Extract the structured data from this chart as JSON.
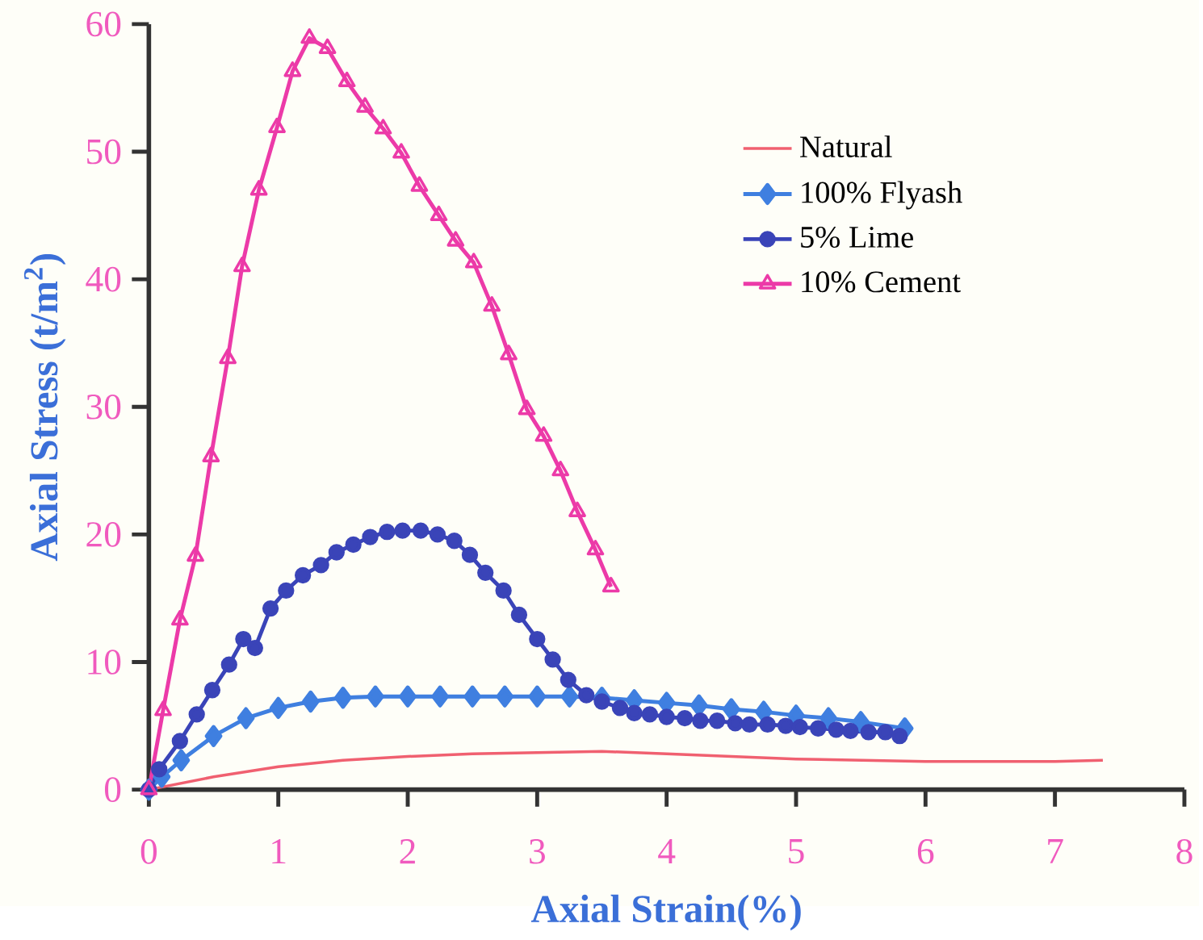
{
  "chart_data": {
    "type": "line",
    "xlabel": "Axial Strain(%)",
    "ylabel": "Axial Stress (t/m$^{2}$)",
    "xlim": [
      0,
      8
    ],
    "ylim": [
      0,
      60
    ],
    "xticks": [
      0,
      1,
      2,
      3,
      4,
      5,
      6,
      7,
      8
    ],
    "yticks": [
      0,
      10,
      20,
      30,
      40,
      50,
      60
    ],
    "grid": false,
    "legend": "top right",
    "series": [
      {
        "name": "Natural",
        "color": "#f06070",
        "marker": "none",
        "x": [
          0,
          0.5,
          1,
          1.5,
          2,
          2.5,
          3,
          3.5,
          4,
          4.5,
          5,
          5.5,
          6,
          6.5,
          7,
          7.37
        ],
        "values": [
          0,
          1.0,
          1.8,
          2.3,
          2.6,
          2.8,
          2.9,
          3.0,
          2.8,
          2.6,
          2.4,
          2.3,
          2.2,
          2.2,
          2.2,
          2.3
        ]
      },
      {
        "name": "100% Flyash",
        "color": "#3f7fe0",
        "marker": "diamond",
        "x": [
          0,
          0.1,
          0.25,
          0.5,
          0.75,
          1,
          1.25,
          1.5,
          1.75,
          2,
          2.25,
          2.5,
          2.75,
          3,
          3.25,
          3.5,
          3.75,
          4,
          4.25,
          4.5,
          4.75,
          5,
          5.25,
          5.5,
          5.84
        ],
        "values": [
          0,
          1.0,
          2.3,
          4.2,
          5.6,
          6.4,
          6.9,
          7.2,
          7.3,
          7.3,
          7.3,
          7.3,
          7.3,
          7.3,
          7.3,
          7.2,
          7.0,
          6.8,
          6.6,
          6.3,
          6.1,
          5.8,
          5.6,
          5.3,
          4.8
        ]
      },
      {
        "name": "5% Lime",
        "color": "#3a44b8",
        "marker": "circle",
        "x": [
          0,
          0.08,
          0.24,
          0.37,
          0.49,
          0.62,
          0.73,
          0.82,
          0.94,
          1.06,
          1.19,
          1.33,
          1.45,
          1.58,
          1.71,
          1.84,
          1.96,
          2.1,
          2.23,
          2.36,
          2.48,
          2.6,
          2.74,
          2.86,
          3.0,
          3.12,
          3.24,
          3.38,
          3.5,
          3.64,
          3.75,
          3.87,
          4.0,
          4.14,
          4.26,
          4.39,
          4.53,
          4.64,
          4.78,
          4.92,
          5.03,
          5.17,
          5.31,
          5.42,
          5.56,
          5.69,
          5.8
        ],
        "values": [
          0,
          1.6,
          3.8,
          5.9,
          7.8,
          9.8,
          11.8,
          11.1,
          14.2,
          15.6,
          16.8,
          17.6,
          18.6,
          19.2,
          19.8,
          20.2,
          20.3,
          20.3,
          20.0,
          19.5,
          18.4,
          17.0,
          15.6,
          13.7,
          11.8,
          10.2,
          8.6,
          7.4,
          6.9,
          6.4,
          6.0,
          5.9,
          5.7,
          5.6,
          5.4,
          5.4,
          5.2,
          5.1,
          5.1,
          5.0,
          4.9,
          4.8,
          4.7,
          4.6,
          4.5,
          4.5,
          4.2
        ]
      },
      {
        "name": "10% Cement",
        "color": "#ec3aa8",
        "marker": "triangle",
        "x": [
          0,
          0.11,
          0.24,
          0.36,
          0.48,
          0.61,
          0.72,
          0.85,
          0.99,
          1.11,
          1.24,
          1.38,
          1.53,
          1.67,
          1.81,
          1.95,
          2.09,
          2.24,
          2.37,
          2.51,
          2.65,
          2.78,
          2.92,
          3.05,
          3.18,
          3.31,
          3.45,
          3.57
        ],
        "values": [
          0,
          6.2,
          13.3,
          18.3,
          26.1,
          33.8,
          41.0,
          47.0,
          51.9,
          56.3,
          58.9,
          58.1,
          55.5,
          53.5,
          51.8,
          49.9,
          47.3,
          45.0,
          43.0,
          41.3,
          37.9,
          34.1,
          29.8,
          27.7,
          25.0,
          21.8,
          18.8,
          15.9
        ]
      }
    ]
  }
}
